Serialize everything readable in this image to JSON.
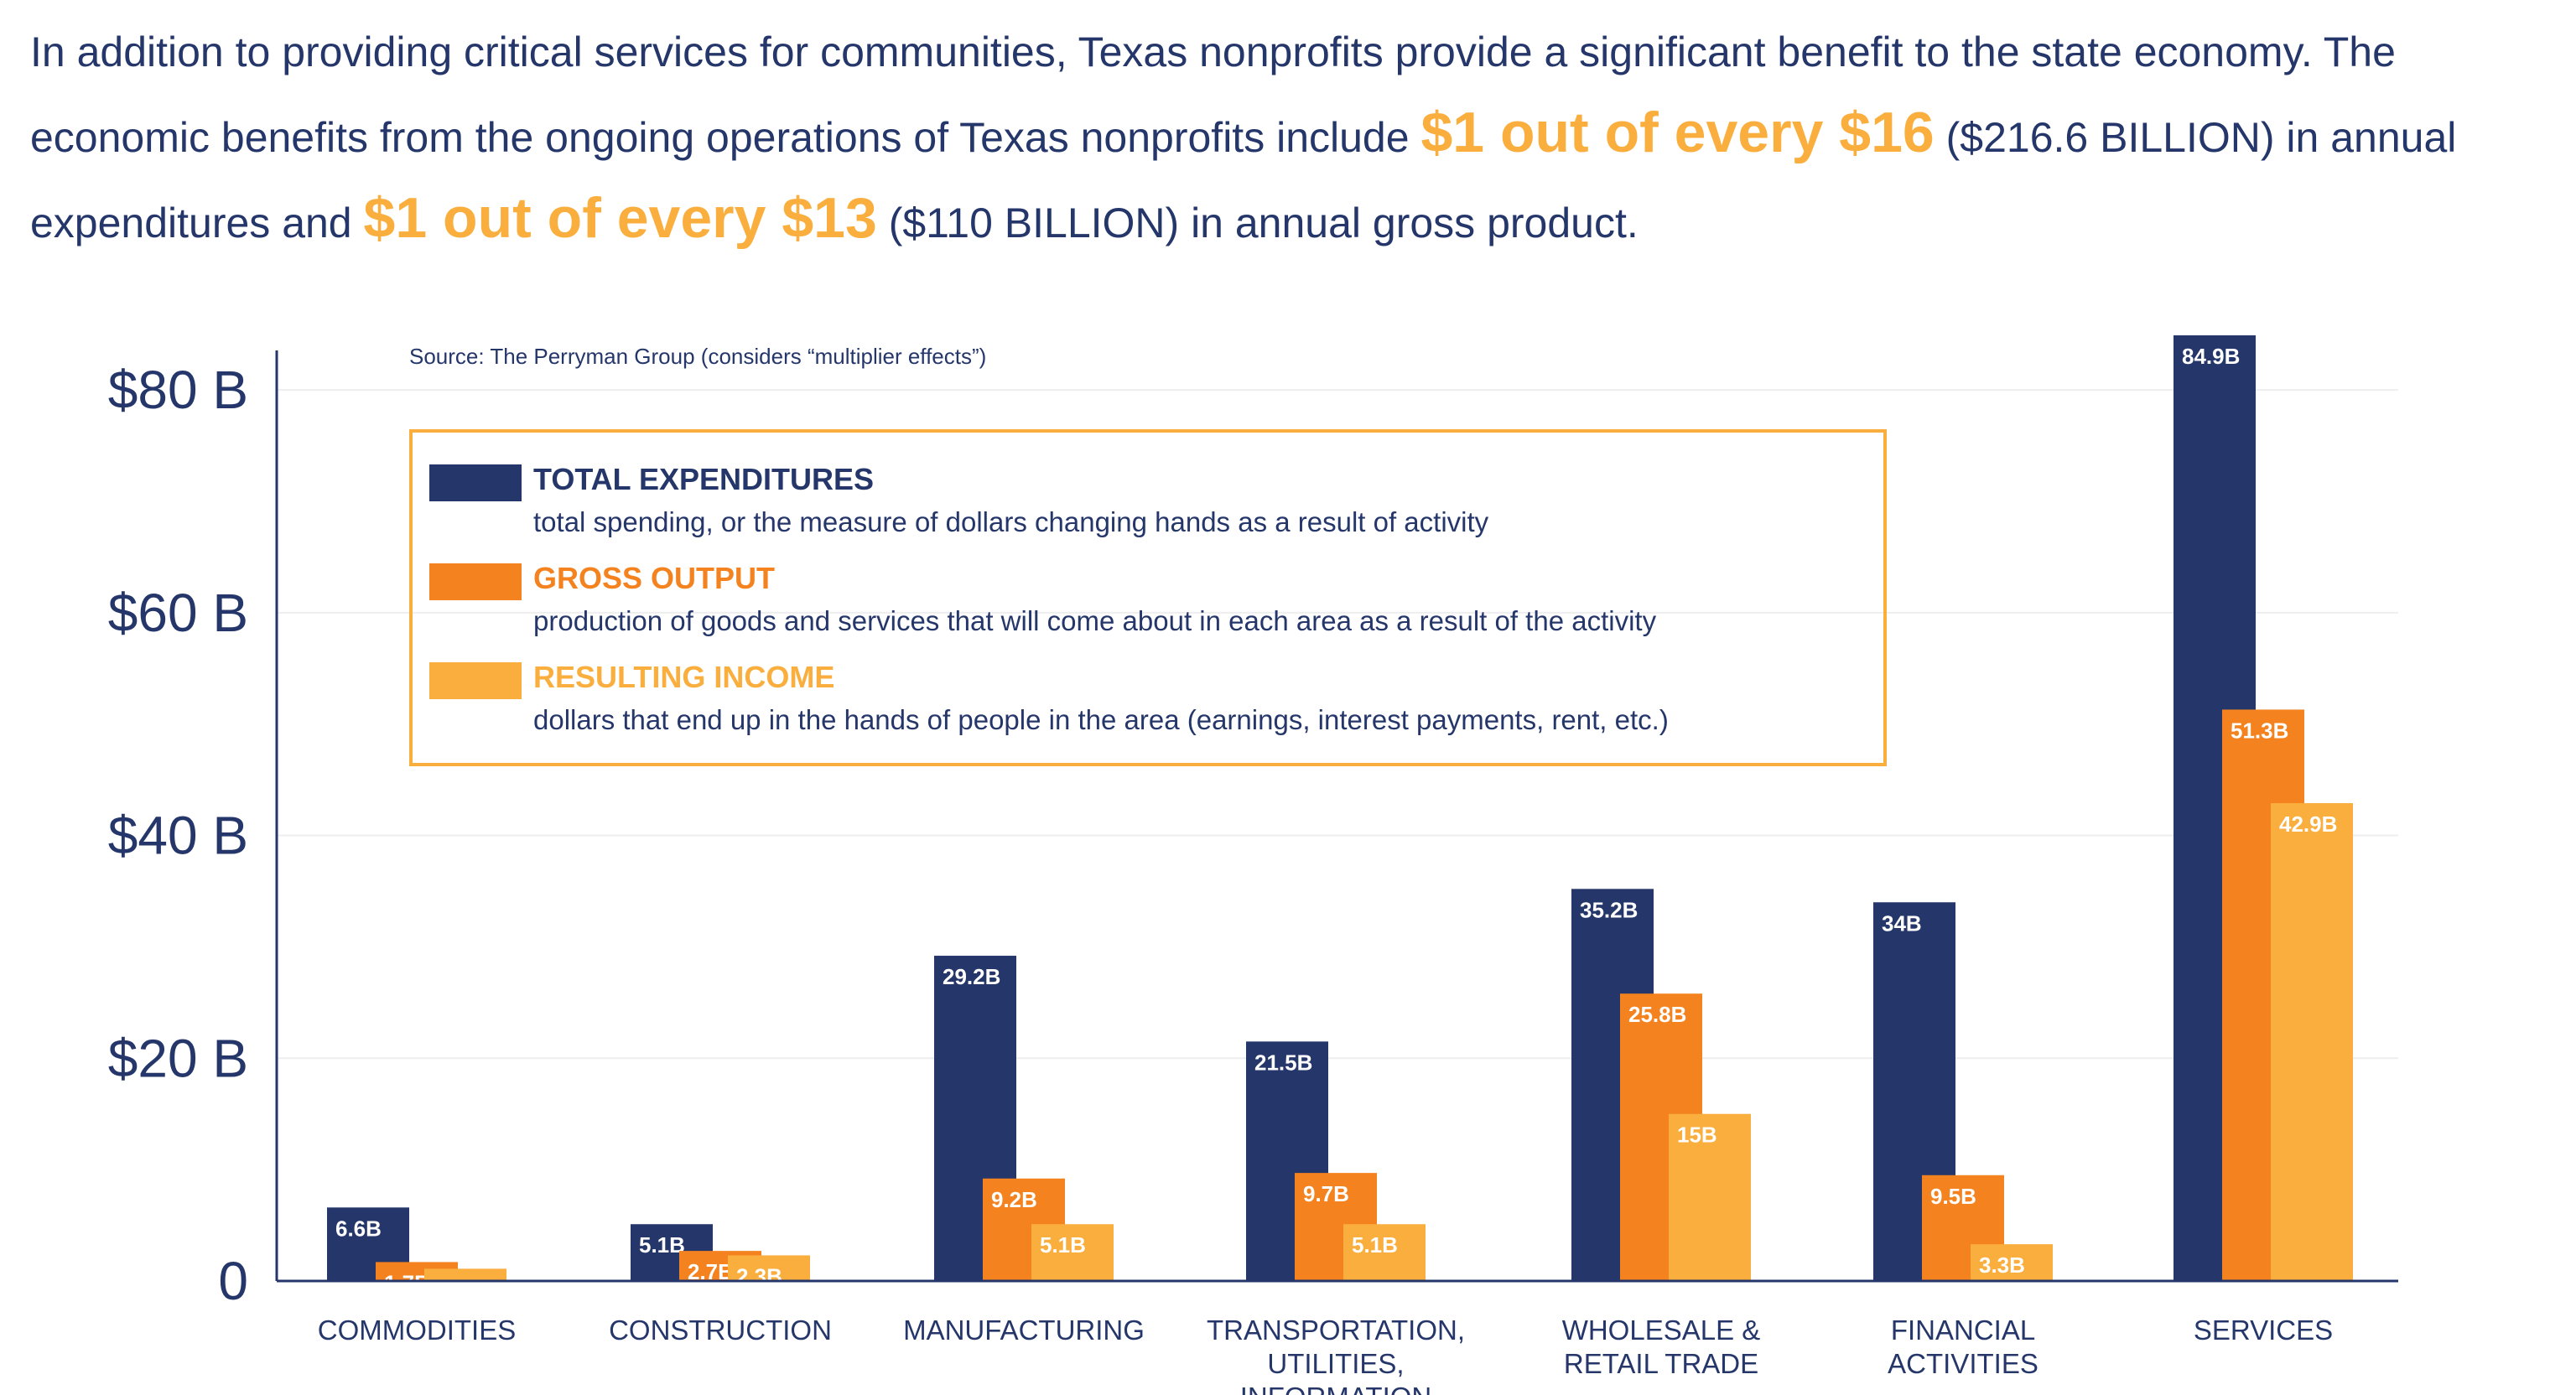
{
  "intro": {
    "part1": "In addition to providing critical services for communities, Texas nonprofits provide a significant benefit to the state economy. The economic benefits from the ongoing operations of Texas nonprofits include ",
    "highlight1": "$1 out of every $16",
    "part2": " ($216.6 BILLION) in annual expenditures and ",
    "highlight2": "$1 out of every $13",
    "part3": " ($110 BILLION) in annual gross product."
  },
  "colors": {
    "total_expenditures": "#25366a",
    "gross_output": "#f3821f",
    "resulting_income": "#f9ae3e",
    "text": "#25366a",
    "highlight": "#f9ae3e",
    "legend_border": "#f9ae3e",
    "grid": "#eeeeee"
  },
  "chart_data": {
    "type": "bar",
    "source": "Source: The Perryman Group (considers “multiplier effects”)",
    "categories": [
      [
        "COMMODITIES"
      ],
      [
        "CONSTRUCTION"
      ],
      [
        "MANUFACTURING"
      ],
      [
        "TRANSPORTATION,",
        "UTILITIES,",
        "INFORMATION"
      ],
      [
        "WHOLESALE &",
        "RETAIL TRADE"
      ],
      [
        "FINANCIAL",
        "ACTIVITIES"
      ],
      [
        "SERVICES"
      ]
    ],
    "series": [
      {
        "name": "TOTAL EXPENDITURES",
        "description": "total spending, or the measure of dollars changing hands as a result of activity",
        "color": "#25366a",
        "values": [
          6.6,
          5.1,
          29.2,
          21.5,
          35.2,
          34,
          84.9
        ],
        "labels": [
          "6.6B",
          "5.1B",
          "29.2B",
          "21.5B",
          "35.2B",
          "34B",
          "84.9B"
        ]
      },
      {
        "name": "GROSS OUTPUT",
        "description": "production of goods and services that will come about in each area as a result of the activity",
        "color": "#f3821f",
        "values": [
          1.7,
          2.7,
          9.2,
          9.7,
          25.8,
          9.5,
          51.3
        ],
        "labels": [
          "1.7B",
          "2.7B",
          "9.2B",
          "9.7B",
          "25.8B",
          "9.5B",
          "51.3B"
        ]
      },
      {
        "name": "RESULTING INCOME",
        "description": "dollars that end up in the hands of people in the area (earnings, interest payments, rent, etc.)",
        "color": "#f9ae3e",
        "values": [
          1.1,
          2.3,
          5.1,
          5.1,
          15,
          3.3,
          42.9
        ],
        "labels": [
          "1.1B",
          "2.3B",
          "5.1B",
          "5.1B",
          "15B",
          "3.3B",
          "42.9B"
        ]
      }
    ],
    "y_ticks": [
      0,
      20,
      40,
      60,
      80
    ],
    "y_tick_labels": [
      "0",
      "$20 B",
      "$40 B",
      "$60 B",
      "$80 B"
    ],
    "ylim": [
      0,
      84.9
    ],
    "grid": true,
    "legend_position": "top-left inside plot"
  }
}
